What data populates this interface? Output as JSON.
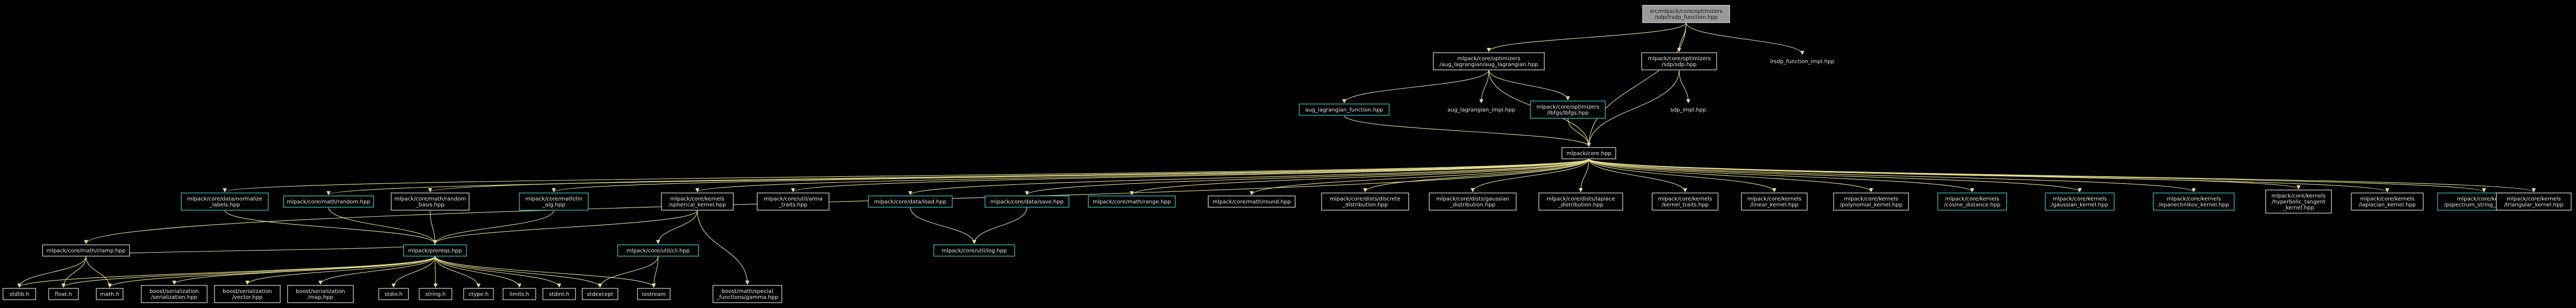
{
  "nodes": [
    {
      "id": "sdp_function",
      "lines": [
        "src/mlpack/core/optimizers",
        "/sdp/lrsdp_function.hpp"
      ],
      "style": "root"
    },
    {
      "id": "aug_lagrangian",
      "lines": [
        "mlpack/core/optimizers",
        "/aug_lagrangian/aug_lagrangian.hpp"
      ],
      "style": "plain"
    },
    {
      "id": "sdp_hpp",
      "lines": [
        "mlpack/core/optimizers",
        "/sdp/sdp.hpp"
      ],
      "style": "plain"
    },
    {
      "id": "lrsdp_function_impl",
      "lines": [
        "lrsdp_function_impl.hpp"
      ],
      "style": "none"
    },
    {
      "id": "aug_lagrangian_function",
      "lines": [
        "aug_lagrangian_function.hpp"
      ],
      "style": "highlight"
    },
    {
      "id": "aug_lagrangian_impl",
      "lines": [
        "aug_lagrangian_impl.hpp"
      ],
      "style": "none"
    },
    {
      "id": "lbfgs",
      "lines": [
        "mlpack/core/optimizers",
        "/lbfgs/lbfgs.hpp"
      ],
      "style": "highlight"
    },
    {
      "id": "sdp_impl",
      "lines": [
        "sdp_impl.hpp"
      ],
      "style": "none"
    },
    {
      "id": "core",
      "lines": [
        "mlpack/core.hpp"
      ],
      "style": "plain"
    },
    {
      "id": "clamp",
      "lines": [
        "mlpack/core/math/clamp.hpp"
      ],
      "style": "plain"
    },
    {
      "id": "normalize_labels",
      "lines": [
        "mlpack/core/data/normalize",
        "_labels.hpp"
      ],
      "style": "highlight"
    },
    {
      "id": "random_hpp",
      "lines": [
        "mlpack/core/math/random.hpp"
      ],
      "style": "highlight"
    },
    {
      "id": "random_basis",
      "lines": [
        "mlpack/core/math/random",
        "_basis.hpp"
      ],
      "style": "plain"
    },
    {
      "id": "lin_alg",
      "lines": [
        "mlpack/core/math/lin",
        "_alg.hpp"
      ],
      "style": "highlight"
    },
    {
      "id": "spherical_kernel",
      "lines": [
        "mlpack/core/kernels",
        "/spherical_kernel.hpp"
      ],
      "style": "plain"
    },
    {
      "id": "arma_traits",
      "lines": [
        "mlpack/core/util/arma",
        "_traits.hpp"
      ],
      "style": "plain"
    },
    {
      "id": "load_hpp",
      "lines": [
        "mlpack/core/data/load.hpp"
      ],
      "style": "highlight"
    },
    {
      "id": "save_hpp",
      "lines": [
        "mlpack/core/data/save.hpp"
      ],
      "style": "highlight"
    },
    {
      "id": "range_hpp",
      "lines": [
        "mlpack/core/math/range.hpp"
      ],
      "style": "highlight"
    },
    {
      "id": "round_hpp",
      "lines": [
        "mlpack/core/math/round.hpp"
      ],
      "style": "plain"
    },
    {
      "id": "discrete_distribution",
      "lines": [
        "mlpack/core/dists/discrete",
        "_distribution.hpp"
      ],
      "style": "plain"
    },
    {
      "id": "gaussian_distribution",
      "lines": [
        "mlpack/core/dists/gaussian",
        "_distribution.hpp"
      ],
      "style": "plain"
    },
    {
      "id": "laplace_distribution",
      "lines": [
        "mlpack/core/dists/laplace",
        "_distribution.hpp"
      ],
      "style": "plain"
    },
    {
      "id": "kernel_traits",
      "lines": [
        "mlpack/core/kernels",
        "/kernel_traits.hpp"
      ],
      "style": "plain"
    },
    {
      "id": "linear_kernel",
      "lines": [
        "mlpack/core/kernels",
        "/linear_kernel.hpp"
      ],
      "style": "plain"
    },
    {
      "id": "polynomial_kernel",
      "lines": [
        "mlpack/core/kernels",
        "/polynomial_kernel.hpp"
      ],
      "style": "plain"
    },
    {
      "id": "cosine_distance",
      "lines": [
        "mlpack/core/kernels",
        "/cosine_distance.hpp"
      ],
      "style": "highlight"
    },
    {
      "id": "gaussian_kernel",
      "lines": [
        "mlpack/core/kernels",
        "/gaussian_kernel.hpp"
      ],
      "style": "highlight"
    },
    {
      "id": "epanechnikov_kernel",
      "lines": [
        "mlpack/core/kernels",
        "/epanechnikov_kernel.hpp"
      ],
      "style": "highlight"
    },
    {
      "id": "hyperbolic_tangent_kernel",
      "lines": [
        "mlpack/core/kernels",
        "/hyperbolic_tangent",
        "_kernel.hpp"
      ],
      "style": "plain"
    },
    {
      "id": "laplacian_kernel",
      "lines": [
        "mlpack/core/kernels",
        "/laplacian_kernel.hpp"
      ],
      "style": "plain"
    },
    {
      "id": "pspectrum_string_kernel",
      "lines": [
        "mlpack/core/kernels",
        "/pspectrum_string_kernel.hpp"
      ],
      "style": "highlight"
    },
    {
      "id": "triangular_kernel",
      "lines": [
        "mlpack/core/kernels",
        "/triangular_kernel.hpp"
      ],
      "style": "plain"
    },
    {
      "id": "prereqs",
      "lines": [
        "mlpack/prereqs.hpp"
      ],
      "style": "highlight"
    },
    {
      "id": "sfinae_utility",
      "lines": [
        "mlpack/core/util/cli.hpp"
      ],
      "style": "highlight"
    },
    {
      "id": "log_hpp",
      "lines": [
        "mlpack/core/util/log.hpp"
      ],
      "style": "highlight"
    },
    {
      "id": "stdlib_h",
      "lines": [
        "stdlib.h"
      ],
      "style": "plain"
    },
    {
      "id": "float_h",
      "lines": [
        "float.h"
      ],
      "style": "plain"
    },
    {
      "id": "math_h",
      "lines": [
        "math.h"
      ],
      "style": "plain"
    },
    {
      "id": "boost_serialization",
      "lines": [
        "boost/serialization",
        "/serialization.hpp"
      ],
      "style": "plain"
    },
    {
      "id": "boost_vector",
      "lines": [
        "boost/serialization",
        "/vector.hpp"
      ],
      "style": "plain"
    },
    {
      "id": "boost_map",
      "lines": [
        "boost/serialization",
        "/map.hpp"
      ],
      "style": "plain"
    },
    {
      "id": "stdio_h",
      "lines": [
        "stdio.h"
      ],
      "style": "plain"
    },
    {
      "id": "string_h",
      "lines": [
        "string.h"
      ],
      "style": "plain"
    },
    {
      "id": "ctype_h",
      "lines": [
        "ctype.h"
      ],
      "style": "plain"
    },
    {
      "id": "limits_h",
      "lines": [
        "limits.h"
      ],
      "style": "plain"
    },
    {
      "id": "stdint_h",
      "lines": [
        "stdint.h"
      ],
      "style": "plain"
    },
    {
      "id": "stdexcept",
      "lines": [
        "stdexcept"
      ],
      "style": "plain"
    },
    {
      "id": "iostream",
      "lines": [
        "iostream"
      ],
      "style": "plain"
    },
    {
      "id": "gamma_hpp",
      "lines": [
        "boost/math/special",
        "_functions/gamma.hpp"
      ],
      "style": "plain"
    }
  ],
  "edges": [
    [
      "sdp_function",
      "aug_lagrangian"
    ],
    [
      "sdp_function",
      "sdp_hpp"
    ],
    [
      "sdp_function",
      "lrsdp_function_impl"
    ],
    [
      "sdp_function",
      "core"
    ],
    [
      "aug_lagrangian",
      "aug_lagrangian_function"
    ],
    [
      "aug_lagrangian",
      "aug_lagrangian_impl"
    ],
    [
      "aug_lagrangian",
      "lbfgs"
    ],
    [
      "aug_lagrangian",
      "core"
    ],
    [
      "sdp_hpp",
      "sdp_impl"
    ],
    [
      "sdp_hpp",
      "core"
    ],
    [
      "aug_lagrangian_function",
      "core"
    ],
    [
      "lbfgs",
      "core"
    ],
    [
      "core",
      "clamp"
    ],
    [
      "core",
      "normalize_labels"
    ],
    [
      "core",
      "random_hpp"
    ],
    [
      "core",
      "random_basis"
    ],
    [
      "core",
      "lin_alg"
    ],
    [
      "core",
      "spherical_kernel"
    ],
    [
      "core",
      "arma_traits"
    ],
    [
      "core",
      "load_hpp"
    ],
    [
      "core",
      "save_hpp"
    ],
    [
      "core",
      "range_hpp"
    ],
    [
      "core",
      "round_hpp"
    ],
    [
      "core",
      "discrete_distribution"
    ],
    [
      "core",
      "gaussian_distribution"
    ],
    [
      "core",
      "laplace_distribution"
    ],
    [
      "core",
      "kernel_traits"
    ],
    [
      "core",
      "linear_kernel"
    ],
    [
      "core",
      "polynomial_kernel"
    ],
    [
      "core",
      "cosine_distance"
    ],
    [
      "core",
      "gaussian_kernel"
    ],
    [
      "core",
      "epanechnikov_kernel"
    ],
    [
      "core",
      "hyperbolic_tangent_kernel"
    ],
    [
      "core",
      "laplacian_kernel"
    ],
    [
      "core",
      "pspectrum_string_kernel"
    ],
    [
      "core",
      "triangular_kernel"
    ],
    [
      "clamp",
      "stdlib_h"
    ],
    [
      "clamp",
      "float_h"
    ],
    [
      "clamp",
      "math_h"
    ],
    [
      "clamp",
      "prereqs"
    ],
    [
      "normalize_labels",
      "prereqs"
    ],
    [
      "random_hpp",
      "prereqs"
    ],
    [
      "random_basis",
      "prereqs"
    ],
    [
      "lin_alg",
      "prereqs"
    ],
    [
      "spherical_kernel",
      "sfinae_utility"
    ],
    [
      "spherical_kernel",
      "gamma_hpp"
    ],
    [
      "spherical_kernel",
      "prereqs"
    ],
    [
      "load_hpp",
      "log_hpp"
    ],
    [
      "save_hpp",
      "log_hpp"
    ],
    [
      "prereqs",
      "stdlib_h"
    ],
    [
      "prereqs",
      "float_h"
    ],
    [
      "prereqs",
      "math_h"
    ],
    [
      "prereqs",
      "boost_serialization"
    ],
    [
      "prereqs",
      "boost_vector"
    ],
    [
      "prereqs",
      "boost_map"
    ],
    [
      "prereqs",
      "stdio_h"
    ],
    [
      "prereqs",
      "string_h"
    ],
    [
      "prereqs",
      "ctype_h"
    ],
    [
      "prereqs",
      "limits_h"
    ],
    [
      "prereqs",
      "stdint_h"
    ],
    [
      "prereqs",
      "stdexcept"
    ],
    [
      "prereqs",
      "iostream"
    ],
    [
      "sfinae_utility",
      "stdexcept"
    ],
    [
      "sfinae_utility",
      "iostream"
    ]
  ]
}
